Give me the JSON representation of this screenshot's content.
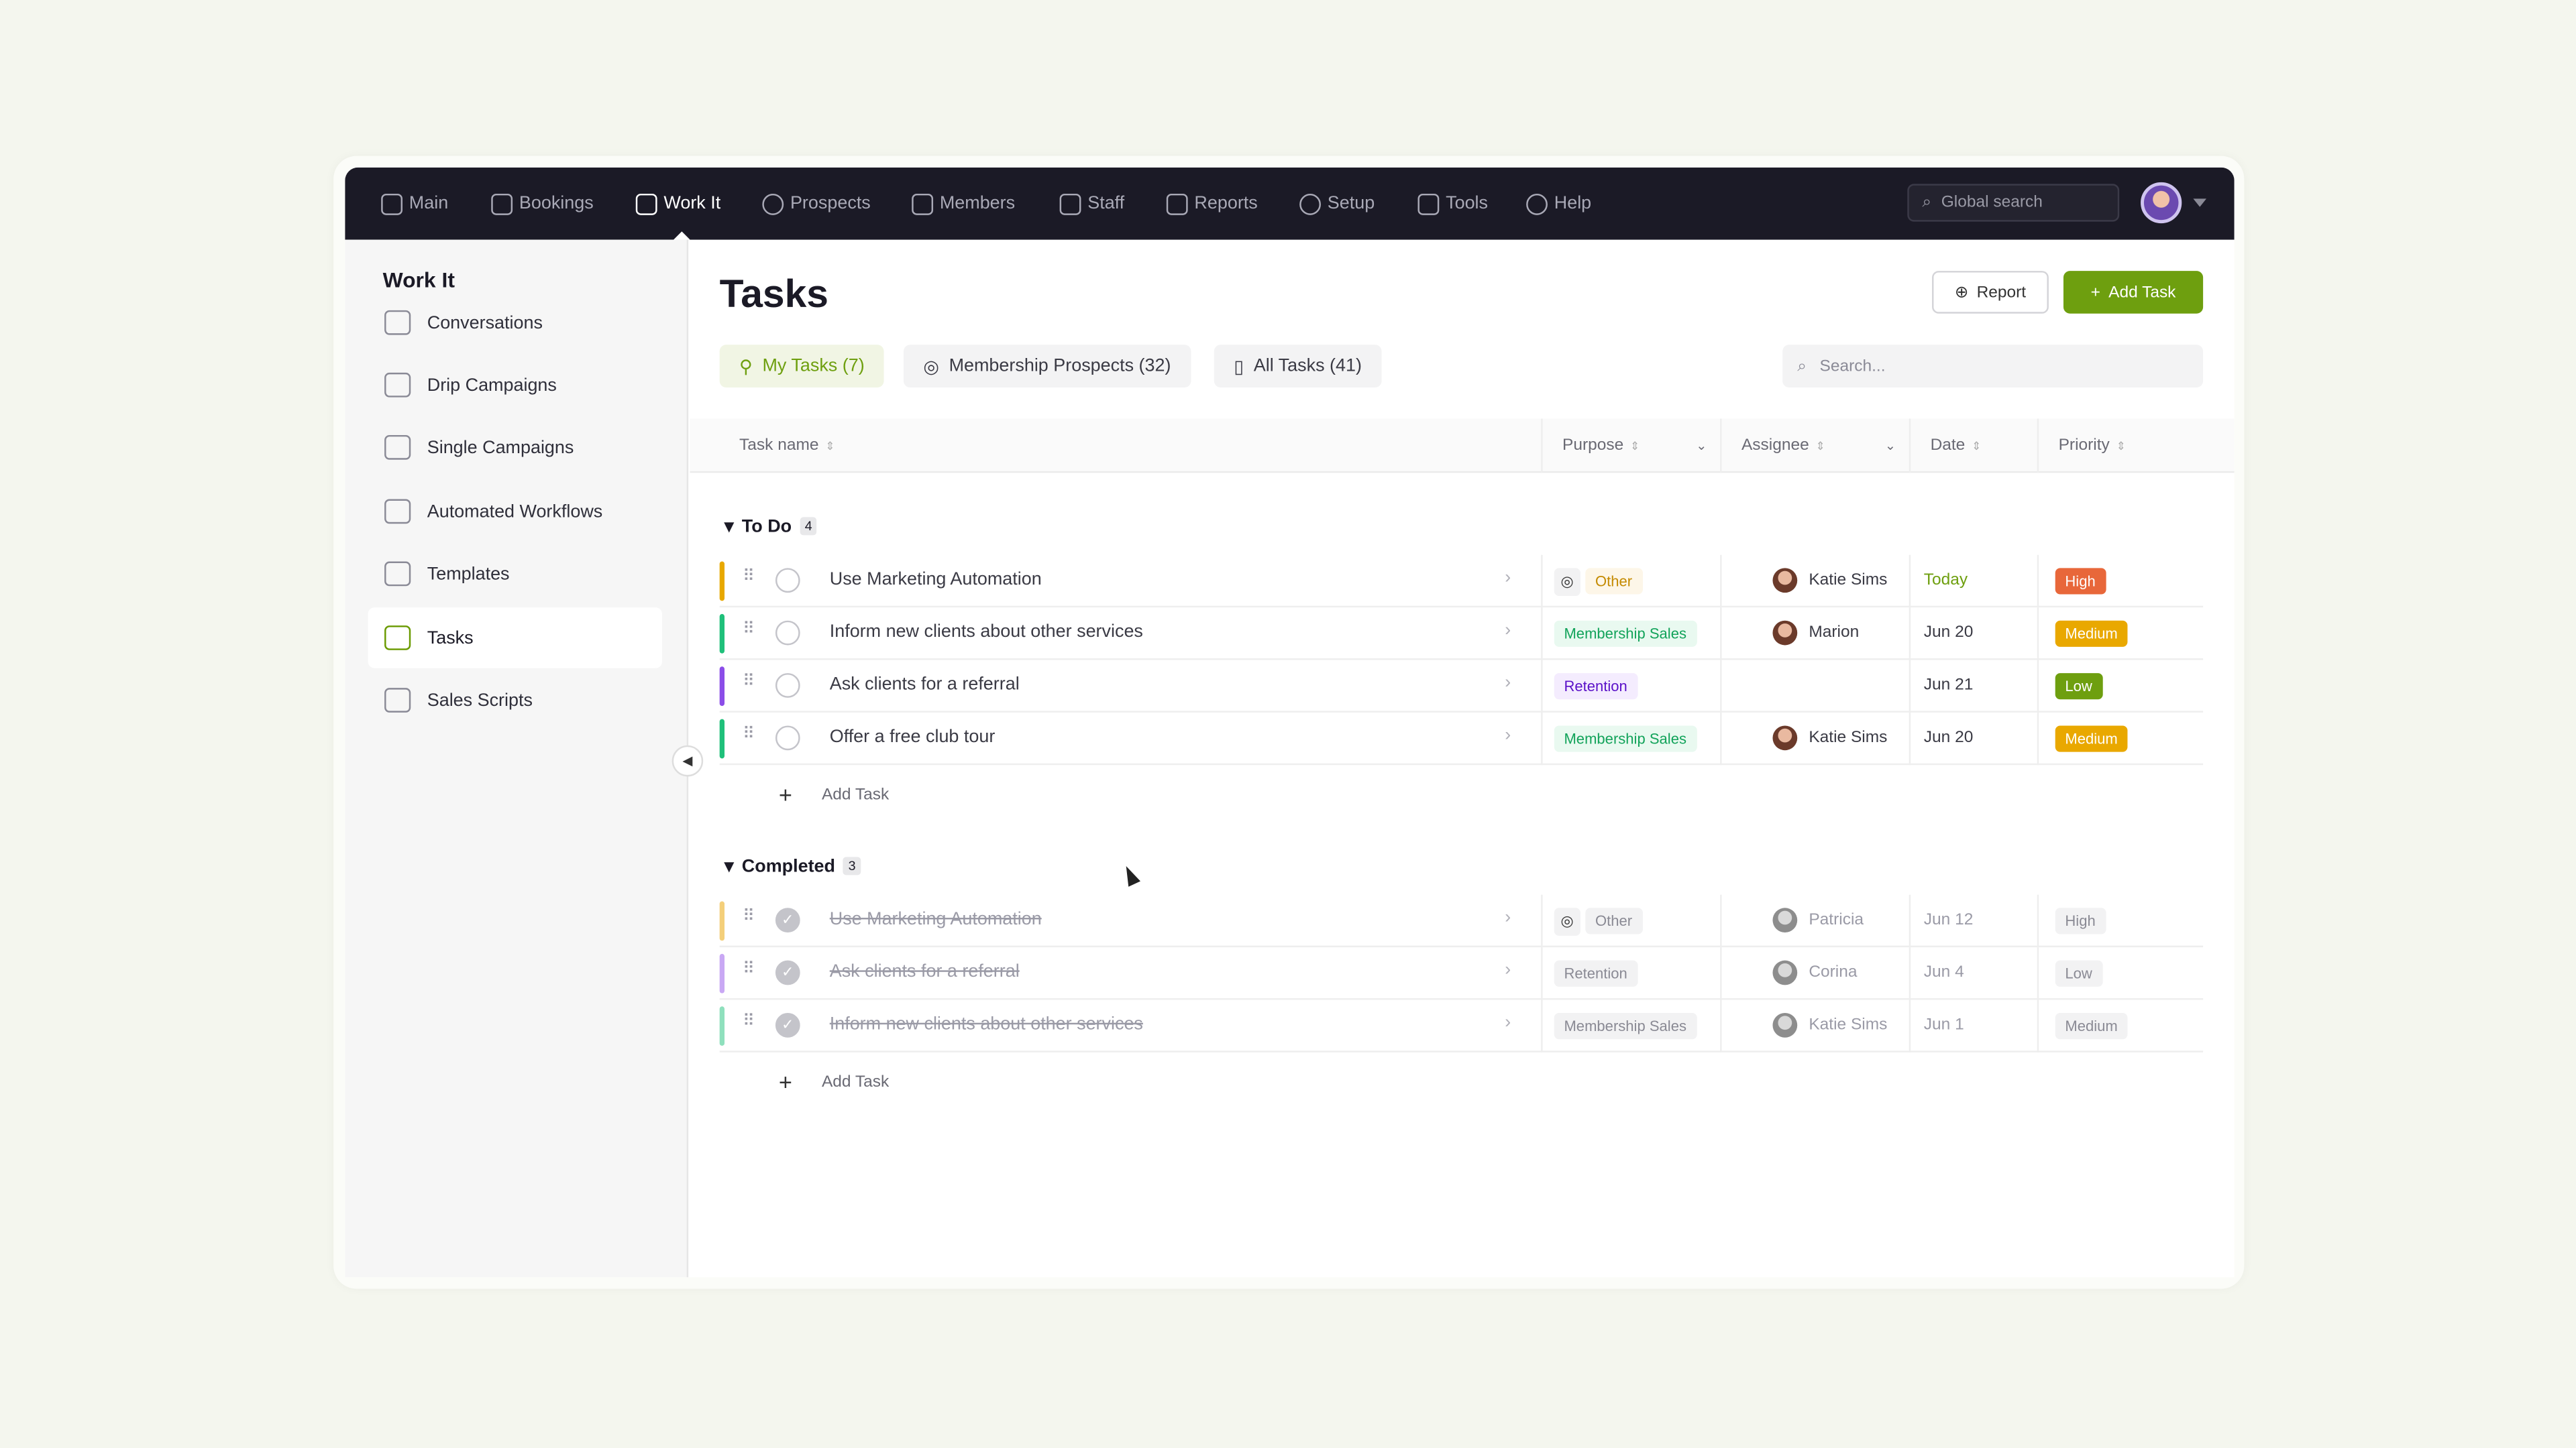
{
  "topnav": [
    {
      "label": "Main",
      "icon": "layout-icon"
    },
    {
      "label": "Bookings",
      "icon": "calendar-icon"
    },
    {
      "label": "Work It",
      "icon": "megaphone-icon",
      "active": true
    },
    {
      "label": "Prospects",
      "icon": "check-circle-icon"
    },
    {
      "label": "Members",
      "icon": "users-icon"
    },
    {
      "label": "Staff",
      "icon": "badge-icon"
    },
    {
      "label": "Reports",
      "icon": "pulse-icon"
    },
    {
      "label": "Setup",
      "icon": "gear-icon"
    },
    {
      "label": "Tools",
      "icon": "wrench-icon"
    },
    {
      "label": "Help",
      "icon": "help-icon"
    }
  ],
  "global_search": {
    "placeholder": "Global search"
  },
  "sidebar": {
    "title": "Work It",
    "items": [
      {
        "label": "Conversations",
        "icon": "users-icon"
      },
      {
        "label": "Drip Campaigns",
        "icon": "mail-icon"
      },
      {
        "label": "Single Campaigns",
        "icon": "chat-icon"
      },
      {
        "label": "Automated Workflows",
        "icon": "hexagon-icon"
      },
      {
        "label": "Templates",
        "icon": "note-icon"
      },
      {
        "label": "Tasks",
        "icon": "columns-icon",
        "active": true
      },
      {
        "label": "Sales Scripts",
        "icon": "code-icon"
      }
    ]
  },
  "main": {
    "title": "Tasks",
    "report_label": "Report",
    "add_task_label": "Add Task",
    "tabs": [
      {
        "label": "My Tasks (7)",
        "active": true
      },
      {
        "label": "Membership Prospects (32)"
      },
      {
        "label": "All Tasks (41)"
      }
    ],
    "search_placeholder": "Search...",
    "columns": [
      "Task name",
      "Purpose",
      "Assignee",
      "Date",
      "Priority"
    ],
    "add_task_row": "Add Task",
    "groups": [
      {
        "label": "To Do",
        "count": "4",
        "done": false,
        "rows": [
          {
            "name": "Use Marketing Automation",
            "bar": "#e8a800",
            "purpose": "Other",
            "purpose_style": "other",
            "assignee": "Katie Sims",
            "date": "Today",
            "priority": "High",
            "priority_color": "#e8673a"
          },
          {
            "name": "Inform new clients about other services",
            "bar": "#1fc07a",
            "purpose": "Membership Sales",
            "purpose_style": "sales",
            "assignee": "Marion",
            "date": "Jun 20",
            "priority": "Medium",
            "priority_color": "#e9a800"
          },
          {
            "name": "Ask clients for a referral",
            "bar": "#8b4de8",
            "purpose": "Retention",
            "purpose_style": "retention",
            "assignee": "",
            "date": "Jun 21",
            "priority": "Low",
            "priority_color": "#6e9f0f"
          },
          {
            "name": "Offer a free club tour",
            "bar": "#1fc07a",
            "purpose": "Membership Sales",
            "purpose_style": "sales",
            "assignee": "Katie Sims",
            "date": "Jun 20",
            "priority": "Medium",
            "priority_color": "#e9a800"
          }
        ]
      },
      {
        "label": "Completed",
        "count": "3",
        "done": true,
        "rows": [
          {
            "name": "Use Marketing Automation",
            "bar": "#f4cf7a",
            "purpose": "Other",
            "purpose_style": "other",
            "assignee": "Patricia",
            "date": "Jun 12",
            "priority": "High"
          },
          {
            "name": "Ask clients for a referral",
            "bar": "#c9a8f4",
            "purpose": "Retention",
            "purpose_style": "retention",
            "assignee": "Corina",
            "date": "Jun 4",
            "priority": "Low"
          },
          {
            "name": "Inform new clients about other services",
            "bar": "#8fe0bd",
            "purpose": "Membership Sales",
            "purpose_style": "sales",
            "assignee": "Katie Sims",
            "date": "Jun 1",
            "priority": "Medium"
          }
        ]
      }
    ]
  },
  "colors": {
    "accent": "#6e9f0f",
    "topbar": "#1b1a26",
    "today": "#6e9f0f"
  }
}
